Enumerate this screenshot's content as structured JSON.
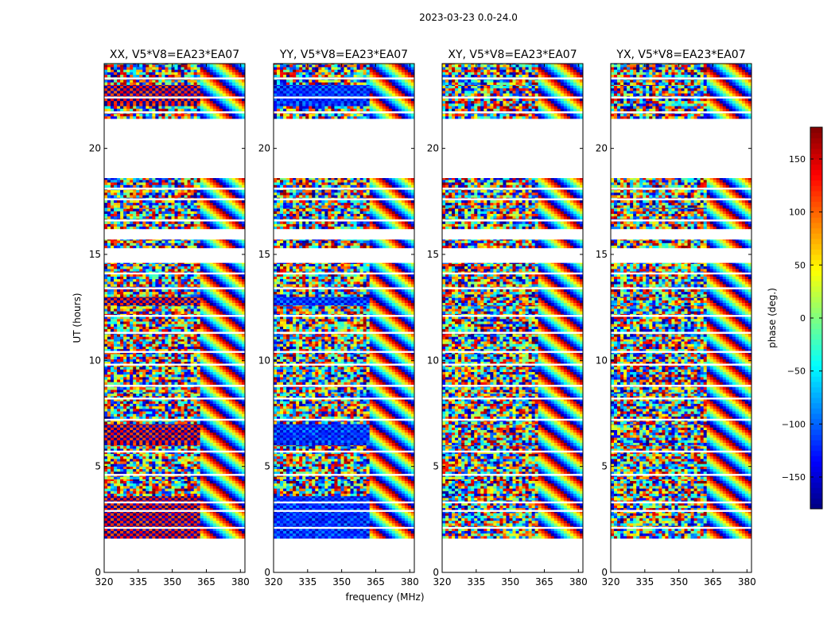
{
  "figure_title": "2023-03-23 0.0-24.0",
  "colorbar": {
    "label": "phase (deg.)",
    "range": [
      -180,
      180
    ],
    "ticks": [
      -150,
      -100,
      -50,
      0,
      50,
      100,
      150
    ],
    "tick_labels": [
      "−150",
      "−100",
      "−50",
      "0",
      "50",
      "100",
      "150"
    ],
    "colormap": "jet",
    "colors": [
      "#00007f",
      "#0000ff",
      "#007fff",
      "#00ffff",
      "#7fff7f",
      "#ffff00",
      "#ff7f00",
      "#ff0000",
      "#7f0000"
    ]
  },
  "chart_data": [
    {
      "type": "heatmap",
      "title": "XX, V5*V8=EA23*EA07",
      "xlabel": "",
      "ylabel": "UT (hours)",
      "xlim": [
        320,
        382
      ],
      "ylim": [
        0,
        24
      ],
      "xticks": [
        320,
        335,
        350,
        365,
        380
      ],
      "yticks": [
        0,
        5,
        10,
        15,
        20
      ],
      "value": "phase (deg.)"
    },
    {
      "type": "heatmap",
      "title": "YY, V5*V8=EA23*EA07",
      "xlabel": "frequency (MHz)",
      "ylabel": "",
      "xlim": [
        320,
        382
      ],
      "ylim": [
        0,
        24
      ],
      "xticks": [
        320,
        335,
        350,
        365,
        380
      ],
      "yticks": [
        0,
        5,
        10,
        15,
        20
      ],
      "value": "phase (deg.)"
    },
    {
      "type": "heatmap",
      "title": "XY, V5*V8=EA23*EA07",
      "xlabel": "",
      "ylabel": "",
      "xlim": [
        320,
        382
      ],
      "ylim": [
        0,
        24
      ],
      "xticks": [
        320,
        335,
        350,
        365,
        380
      ],
      "yticks": [
        0,
        5,
        10,
        15,
        20
      ],
      "value": "phase (deg.)"
    },
    {
      "type": "heatmap",
      "title": "YX, V5*V8=EA23*EA07",
      "xlabel": "",
      "ylabel": "",
      "xlim": [
        320,
        382
      ],
      "ylim": [
        0,
        24
      ],
      "xticks": [
        320,
        335,
        350,
        365,
        380
      ],
      "yticks": [
        0,
        5,
        10,
        15,
        20
      ],
      "value": "phase (deg.)"
    }
  ]
}
